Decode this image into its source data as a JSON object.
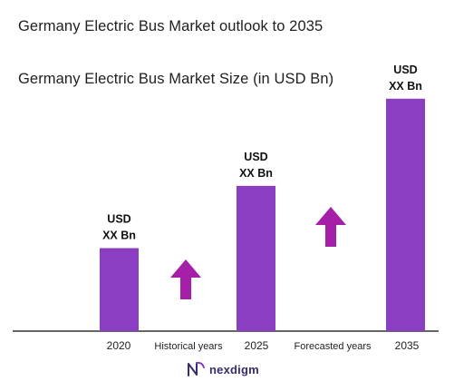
{
  "chart_data": {
    "type": "bar",
    "title": "Germany Electric Bus Market outlook to 2035",
    "subtitle": "Germany Electric Bus Market Size (in USD Bn)",
    "categories": [
      "2020",
      "2025",
      "2035"
    ],
    "values": [
      1,
      1.75,
      2.8
    ],
    "value_labels": [
      [
        "USD",
        "XX Bn"
      ],
      [
        "USD",
        "XX Bn"
      ],
      [
        "USD",
        "XX Bn"
      ]
    ],
    "between_labels": [
      "Historical years",
      "Forecasted years"
    ],
    "bar_color": "#8a3fc2",
    "arrow_color": "#a51fa8",
    "grid": false,
    "legend": "none"
  },
  "brand": {
    "name": "nexdigm",
    "icon": "nexdigm-logo-icon"
  }
}
